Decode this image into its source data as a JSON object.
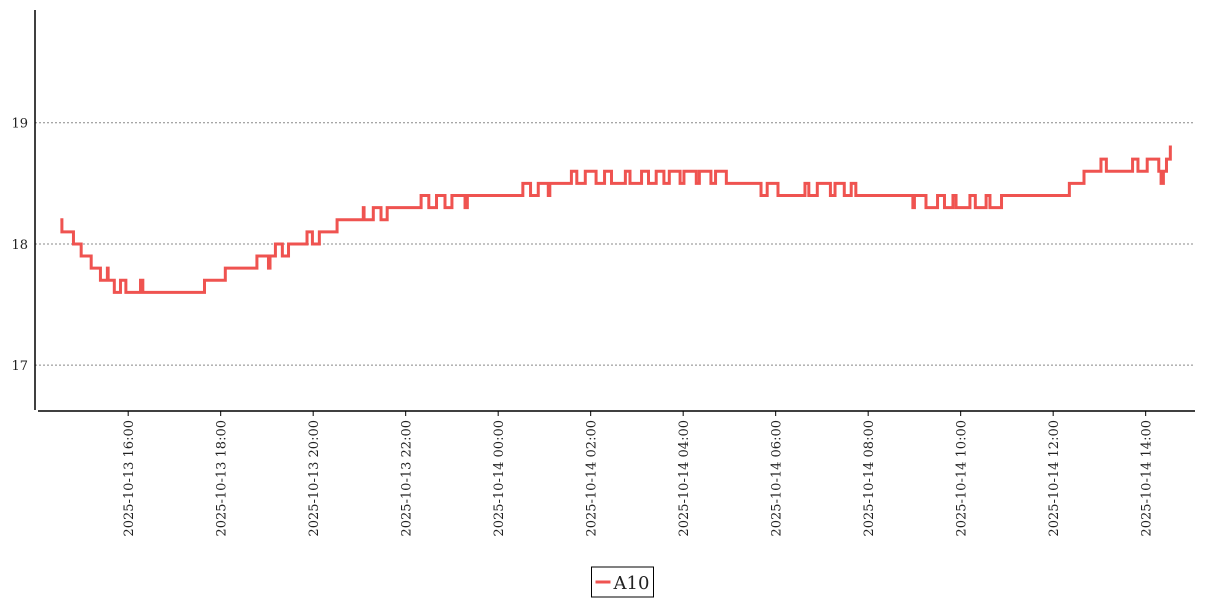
{
  "chart_data": {
    "type": "line",
    "drawstyle": "steps-post",
    "x": [
      "2025-10-13 14:32",
      "2025-10-13 14:34",
      "2025-10-13 14:49",
      "2025-10-13 14:59",
      "2025-10-13 15:12",
      "2025-10-13 15:24",
      "2025-10-13 15:33",
      "2025-10-13 15:34",
      "2025-10-13 15:42",
      "2025-10-13 15:50",
      "2025-10-13 15:57",
      "2025-10-13 16:16",
      "2025-10-13 16:19",
      "2025-10-13 17:39",
      "2025-10-13 18:06",
      "2025-10-13 18:47",
      "2025-10-13 19:02",
      "2025-10-13 19:04",
      "2025-10-13 19:11",
      "2025-10-13 19:20",
      "2025-10-13 19:28",
      "2025-10-13 19:52",
      "2025-10-13 19:59",
      "2025-10-13 20:08",
      "2025-10-13 20:31",
      "2025-10-13 21:05",
      "2025-10-13 21:06",
      "2025-10-13 21:18",
      "2025-10-13 21:28",
      "2025-10-13 21:36",
      "2025-10-13 22:20",
      "2025-10-13 22:30",
      "2025-10-13 22:40",
      "2025-10-13 22:51",
      "2025-10-13 23:00",
      "2025-10-13 23:17",
      "2025-10-13 23:20",
      "2025-10-14 00:32",
      "2025-10-14 00:42",
      "2025-10-14 00:52",
      "2025-10-14 01:05",
      "2025-10-14 01:07",
      "2025-10-14 01:35",
      "2025-10-14 01:42",
      "2025-10-14 01:53",
      "2025-10-14 02:07",
      "2025-10-14 02:18",
      "2025-10-14 02:27",
      "2025-10-14 02:45",
      "2025-10-14 02:51",
      "2025-10-14 03:06",
      "2025-10-14 03:15",
      "2025-10-14 03:25",
      "2025-10-14 03:35",
      "2025-10-14 03:42",
      "2025-10-14 03:56",
      "2025-10-14 04:01",
      "2025-10-14 04:17",
      "2025-10-14 04:21",
      "2025-10-14 04:36",
      "2025-10-14 04:42",
      "2025-10-14 04:56",
      "2025-10-14 05:41",
      "2025-10-14 05:49",
      "2025-10-14 06:03",
      "2025-10-14 06:38",
      "2025-10-14 06:43",
      "2025-10-14 06:54",
      "2025-10-14 07:11",
      "2025-10-14 07:17",
      "2025-10-14 07:29",
      "2025-10-14 07:38",
      "2025-10-14 07:44",
      "2025-10-14 08:58",
      "2025-10-14 09:00",
      "2025-10-14 09:15",
      "2025-10-14 09:30",
      "2025-10-14 09:39",
      "2025-10-14 09:50",
      "2025-10-14 09:54",
      "2025-10-14 10:12",
      "2025-10-14 10:19",
      "2025-10-14 10:33",
      "2025-10-14 10:38",
      "2025-10-14 10:53",
      "2025-10-14 12:21",
      "2025-10-14 12:40",
      "2025-10-14 13:02",
      "2025-10-14 13:09",
      "2025-10-14 13:43",
      "2025-10-14 13:50",
      "2025-10-14 14:02",
      "2025-10-14 14:17",
      "2025-10-14 14:20",
      "2025-10-14 14:23",
      "2025-10-14 14:27",
      "2025-10-14 14:32",
      "2025-10-14 14:34"
    ],
    "series": [
      {
        "name": "A10",
        "color": "#ef5350",
        "values": [
          18.2,
          18.1,
          18.0,
          17.9,
          17.8,
          17.7,
          17.8,
          17.7,
          17.6,
          17.7,
          17.6,
          17.7,
          17.6,
          17.7,
          17.8,
          17.9,
          17.8,
          17.9,
          18.0,
          17.9,
          18.0,
          18.1,
          18.0,
          18.1,
          18.2,
          18.3,
          18.2,
          18.3,
          18.2,
          18.3,
          18.4,
          18.3,
          18.4,
          18.3,
          18.4,
          18.3,
          18.4,
          18.5,
          18.4,
          18.5,
          18.4,
          18.5,
          18.6,
          18.5,
          18.6,
          18.5,
          18.6,
          18.5,
          18.6,
          18.5,
          18.6,
          18.5,
          18.6,
          18.5,
          18.6,
          18.5,
          18.6,
          18.5,
          18.6,
          18.5,
          18.6,
          18.5,
          18.4,
          18.5,
          18.4,
          18.5,
          18.4,
          18.5,
          18.4,
          18.5,
          18.4,
          18.5,
          18.4,
          18.3,
          18.4,
          18.3,
          18.4,
          18.3,
          18.4,
          18.3,
          18.4,
          18.3,
          18.4,
          18.3,
          18.4,
          18.5,
          18.6,
          18.7,
          18.6,
          18.7,
          18.6,
          18.7,
          18.6,
          18.5,
          18.6,
          18.7,
          18.8,
          18.8
        ]
      }
    ],
    "xlim": [
      "2025-10-13 14:03",
      "2025-10-14 15:04"
    ],
    "xticks": [
      "2025-10-13 16:00",
      "2025-10-13 18:00",
      "2025-10-13 20:00",
      "2025-10-13 22:00",
      "2025-10-14 00:00",
      "2025-10-14 02:00",
      "2025-10-14 04:00",
      "2025-10-14 06:00",
      "2025-10-14 08:00",
      "2025-10-14 10:00",
      "2025-10-14 12:00",
      "2025-10-14 14:00"
    ],
    "ylim": [
      16.63,
      19.93
    ],
    "yticks": [
      17,
      18,
      19
    ],
    "grid": true,
    "legend": "bottom"
  }
}
